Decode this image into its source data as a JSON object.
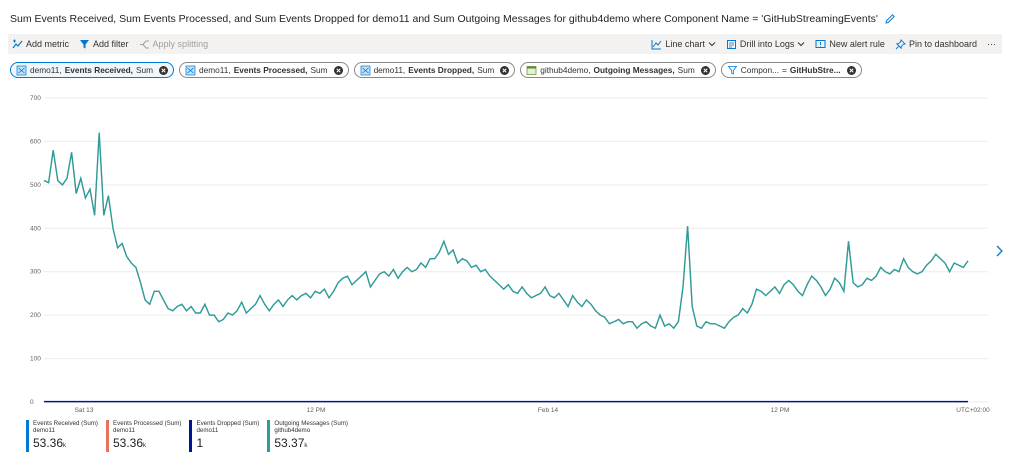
{
  "title": "Sum Events Received, Sum Events Processed, and Sum Events Dropped for demo11 and Sum Outgoing Messages for github4demo where Component Name = 'GitHubStreamingEvents'",
  "toolbar": {
    "add_metric": "Add metric",
    "add_filter": "Add filter",
    "apply_splitting": "Apply splitting",
    "line_chart": "Line chart",
    "drill_logs": "Drill into Logs",
    "new_alert": "New alert rule",
    "pin": "Pin to dashboard",
    "more": "···"
  },
  "pills": [
    {
      "resource": "demo11,",
      "metric": "Events Received,",
      "agg": "Sum"
    },
    {
      "resource": "demo11,",
      "metric": "Events Processed,",
      "agg": "Sum"
    },
    {
      "resource": "demo11,",
      "metric": "Events Dropped,",
      "agg": "Sum"
    },
    {
      "resource": "github4demo,",
      "metric": "Outgoing Messages,",
      "agg": "Sum"
    },
    {
      "resource": "Compon...",
      "metric": "GitHubStre...",
      "agg": "="
    }
  ],
  "chart_data": {
    "type": "line",
    "ylim": [
      0,
      700
    ],
    "yticks": [
      "700",
      "600",
      "500",
      "400",
      "300",
      "200",
      "100",
      "0"
    ],
    "xticks": [
      "Sat 13",
      "12 PM",
      "Feb 14",
      "12 PM",
      "UTC+02:00"
    ],
    "series": [
      {
        "name": "Outgoing Messages (Sum)",
        "color": "#2a9d9a",
        "values": [
          510,
          505,
          580,
          510,
          500,
          515,
          575,
          480,
          515,
          470,
          490,
          430,
          620,
          430,
          475,
          400,
          355,
          365,
          335,
          320,
          310,
          275,
          235,
          225,
          255,
          255,
          235,
          215,
          210,
          220,
          225,
          210,
          220,
          205,
          205,
          225,
          200,
          200,
          185,
          190,
          205,
          200,
          210,
          230,
          205,
          215,
          225,
          245,
          225,
          210,
          225,
          235,
          220,
          235,
          245,
          235,
          245,
          250,
          240,
          255,
          250,
          260,
          240,
          255,
          275,
          285,
          290,
          270,
          280,
          290,
          300,
          265,
          280,
          295,
          300,
          290,
          305,
          285,
          300,
          310,
          300,
          305,
          320,
          310,
          330,
          330,
          345,
          370,
          340,
          350,
          320,
          330,
          325,
          310,
          315,
          300,
          305,
          290,
          280,
          270,
          260,
          270,
          255,
          250,
          265,
          250,
          240,
          245,
          250,
          265,
          245,
          240,
          250,
          235,
          220,
          245,
          230,
          220,
          235,
          225,
          210,
          200,
          195,
          180,
          185,
          190,
          180,
          185,
          185,
          170,
          180,
          185,
          175,
          170,
          200,
          175,
          180,
          170,
          185,
          265,
          405,
          220,
          175,
          170,
          185,
          180,
          180,
          175,
          170,
          185,
          195,
          200,
          215,
          205,
          225,
          260,
          255,
          245,
          255,
          265,
          250,
          270,
          280,
          270,
          255,
          245,
          270,
          290,
          280,
          265,
          245,
          260,
          285,
          275,
          255,
          370,
          275,
          265,
          270,
          285,
          280,
          290,
          310,
          300,
          295,
          305,
          300,
          330,
          310,
          300,
          295,
          300,
          315,
          325,
          340,
          330,
          320,
          300,
          320,
          315,
          310,
          325
        ]
      },
      {
        "name": "Events Received (Sum)",
        "color": "#0078d4",
        "values": []
      },
      {
        "name": "Events Processed (Sum)",
        "color": "#e8735a",
        "values": []
      },
      {
        "name": "Events Dropped (Sum)",
        "color": "#00188f",
        "values": [
          1
        ]
      }
    ]
  },
  "legend": [
    {
      "name": "Events Received (Sum)",
      "resource": "demo11",
      "value": "53.36",
      "unit": "k",
      "color": "#0078d4"
    },
    {
      "name": "Events Processed (Sum)",
      "resource": "demo11",
      "value": "53.36",
      "unit": "k",
      "color": "#e8735a"
    },
    {
      "name": "Events Dropped (Sum)",
      "resource": "demo11",
      "value": "1",
      "unit": "",
      "color": "#00188f"
    },
    {
      "name": "Outgoing Messages (Sum)",
      "resource": "github4demo",
      "value": "53.37",
      "unit": "k",
      "color": "#2a9d9a"
    }
  ]
}
